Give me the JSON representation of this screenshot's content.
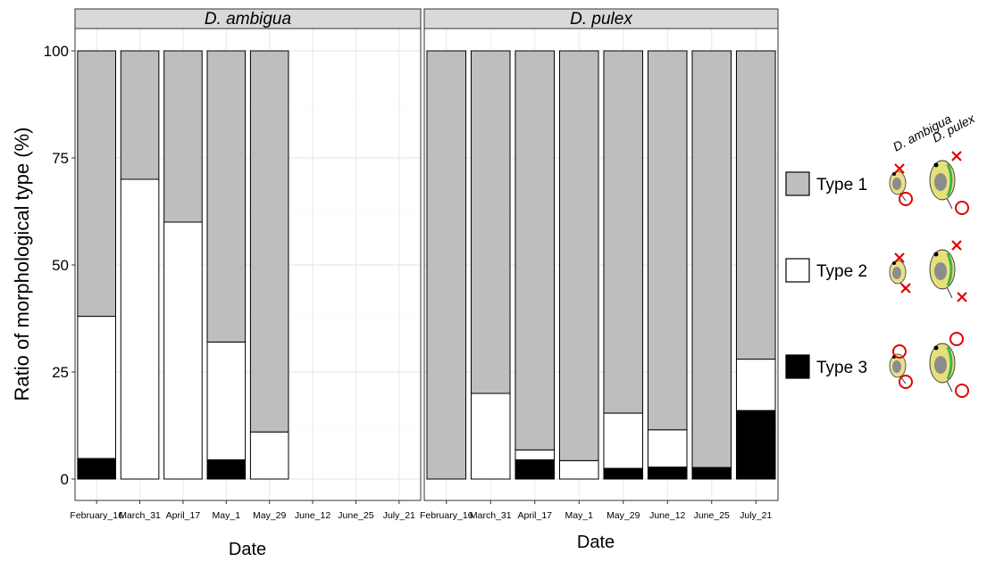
{
  "chart_data": {
    "type": "bar",
    "stacked": true,
    "ylabel": "Ratio of morphological type (%)",
    "xlabel": "Date",
    "ylim": [
      0,
      100
    ],
    "yticks": [
      0,
      25,
      50,
      75,
      100
    ],
    "grid": true,
    "legend_position": "right",
    "colors": {
      "Type 1": "#bebebe",
      "Type 2": "#ffffff",
      "Type 3": "#000000"
    },
    "categories": [
      "February_16",
      "March_31",
      "April_17",
      "May_1",
      "May_29",
      "June_12",
      "June_25",
      "July_21"
    ],
    "legend": [
      "Type 1",
      "Type 2",
      "Type 3"
    ],
    "panels": [
      {
        "title": "D. ambigua",
        "series": [
          {
            "name": "Type 3",
            "values": [
              4.8,
              0,
              0,
              4.5,
              0,
              null,
              null,
              null
            ]
          },
          {
            "name": "Type 2",
            "values": [
              33.2,
              70,
              60,
              27.5,
              11,
              null,
              null,
              null
            ]
          },
          {
            "name": "Type 1",
            "values": [
              62,
              30,
              40,
              68,
              89,
              null,
              null,
              null
            ]
          }
        ]
      },
      {
        "title": "D. pulex",
        "series": [
          {
            "name": "Type 3",
            "values": [
              0,
              0,
              4.5,
              0,
              2.5,
              2.8,
              2.7,
              16
            ]
          },
          {
            "name": "Type 2",
            "values": [
              0,
              20,
              2.3,
              4.3,
              12.9,
              8.7,
              0,
              12
            ]
          },
          {
            "name": "Type 1",
            "values": [
              100,
              80,
              93.2,
              95.7,
              84.6,
              88.5,
              97.3,
              72
            ]
          }
        ]
      }
    ],
    "illustration_headers": [
      "D. ambigua",
      "D. pulex"
    ]
  }
}
